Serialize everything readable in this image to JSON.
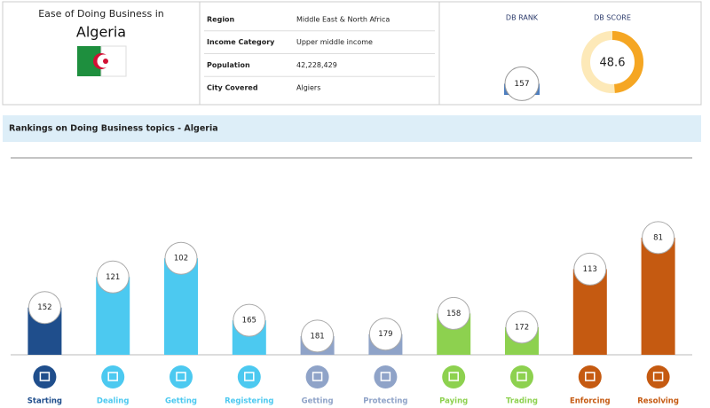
{
  "header": {
    "intro": "Ease of Doing Business in",
    "country": "Algeria"
  },
  "info": {
    "rows": [
      [
        "Region",
        "Middle East & North Africa"
      ],
      [
        "Income Category",
        "Upper middle income"
      ],
      [
        "Population",
        "42,228,429"
      ],
      [
        "City Covered",
        "Algiers"
      ]
    ]
  },
  "db_rank": {
    "label": "DB RANK",
    "value": 157
  },
  "db_score": {
    "label": "DB SCORE",
    "value": 48.6,
    "range": [
      0,
      100
    ]
  },
  "section_title": "Rankings on Doing Business topics - Algeria",
  "chart_data": {
    "type": "bar",
    "categories": [
      "Starting",
      "Dealing",
      "Getting",
      "Registering",
      "Getting",
      "Protecting",
      "Paying",
      "Trading",
      "Enforcing",
      "Resolving"
    ],
    "values": [
      152,
      121,
      102,
      165,
      181,
      179,
      158,
      172,
      113,
      81
    ],
    "colors": [
      "#1f4e8c",
      "#4cc9f0",
      "#4cc9f0",
      "#4cc9f0",
      "#8fa3c8",
      "#8fa3c8",
      "#8dd14f",
      "#8dd14f",
      "#c55a11",
      "#c55a11"
    ],
    "ylim": [
      200,
      0
    ]
  }
}
